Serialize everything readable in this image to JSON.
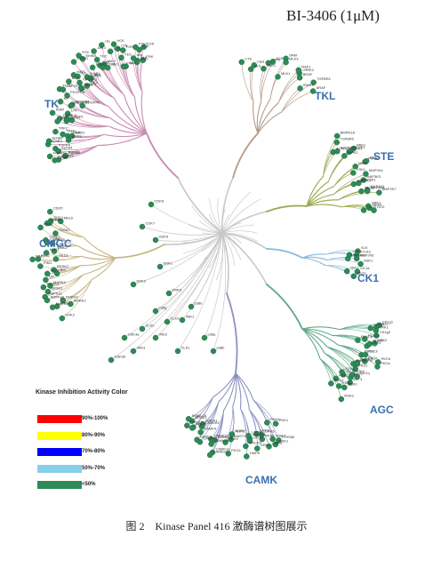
{
  "title": "BI-3406 (1μM)",
  "caption": "图 2　Kinase Panel 416 激酶谱树图展示",
  "families": [
    {
      "key": "tk",
      "label": "TK"
    },
    {
      "key": "tkl",
      "label": "TKL"
    },
    {
      "key": "ste",
      "label": "STE"
    },
    {
      "key": "ck1",
      "label": "CK1"
    },
    {
      "key": "agc",
      "label": "AGC"
    },
    {
      "key": "camk",
      "label": "CAMK"
    },
    {
      "key": "cmgc",
      "label": "CMGC"
    }
  ],
  "legend": {
    "title": "Kinase Inhibition Activity Color",
    "items": [
      {
        "label": "90%-100%",
        "color": "#ff0000"
      },
      {
        "label": "80%-90%",
        "color": "#ffff00"
      },
      {
        "label": "70%-80%",
        "color": "#0000ff"
      },
      {
        "label": "50%-70%",
        "color": "#87ceeb"
      },
      {
        "label": "<50%",
        "color": "#2e8b57"
      }
    ]
  },
  "colors": {
    "tk": "#c98bb0",
    "tkl": "#b89a8a",
    "ste": "#9aa84e",
    "ck1": "#8ab8d8",
    "agc": "#5faa8a",
    "camk": "#8a90c0",
    "cmgc": "#c8b483",
    "other": "#c8c8c8",
    "node": "#2e8b57"
  },
  "kinase_labels": [
    "FGFR3",
    "FGFR1",
    "FGFR2",
    "FGFR4",
    "EphA2",
    "EphA3",
    "EphA4",
    "EphB3",
    "EphB4",
    "TRKA",
    "TRKB",
    "TRKC",
    "MUSK",
    "DDR1",
    "DDR2",
    "INSR",
    "IGF1R",
    "ALK",
    "LTK",
    "ROS",
    "RET",
    "KIT",
    "FLT3",
    "CSF1R",
    "PDGFRa",
    "PDGFRb",
    "VEGFR1",
    "VEGFR2",
    "VEGFR3",
    "TIE2",
    "MET",
    "RON",
    "AXL",
    "MER",
    "TYRO3",
    "EGFR",
    "ErbB2",
    "ErbB4",
    "SYK",
    "ZAP70",
    "BTK",
    "BMX",
    "ITK",
    "TEC",
    "TXK",
    "JAK1",
    "JAK2",
    "JAK3",
    "TYK2",
    "SRC",
    "FYN",
    "YES",
    "LCK",
    "LYN",
    "HCK",
    "FGR",
    "BLK",
    "FRK",
    "ABL",
    "ARG",
    "FAK",
    "PYK2",
    "CSK",
    "CTK",
    "FES",
    "FER",
    "ACK",
    "TNK1",
    "PTK6",
    "SRM",
    "MLK3",
    "MLK1",
    "LRRK2",
    "RAF1",
    "BRAF",
    "ARAF",
    "IRAK4",
    "TGFBR1",
    "TGFBR2",
    "ACVR1",
    "ACVR2A",
    "BMPR1A",
    "RIPK2",
    "LIMK1",
    "TESK1",
    "PAK1",
    "PAK4",
    "MST1",
    "MST2",
    "YSK1",
    "MAP3K1",
    "MAP3K3",
    "MAP2K1",
    "MAP2K4",
    "MAP2K7",
    "MAP4K2",
    "MAP4K4",
    "TAO1",
    "TAO3",
    "NEK2",
    "HPK1",
    "GCK",
    "SLK",
    "LOK",
    "STLK3",
    "MAP2K3",
    "MAP2K6",
    "ASK1",
    "TAK1",
    "CK1a",
    "CK1d",
    "CK1e",
    "CK1g1",
    "CK1g2",
    "CK1g3",
    "VRK1",
    "VRK2",
    "TTBK1",
    "TTBK2",
    "PKACa",
    "PKACb",
    "PKCa",
    "PKCb",
    "PKCd",
    "PKCe",
    "PKCh",
    "PKCi",
    "PKCq",
    "PKCz",
    "ROCK1",
    "ROCK2",
    "AKT1",
    "AKT2",
    "AKT3",
    "SGK1",
    "SGK2",
    "SGK3",
    "RSK1",
    "RSK2",
    "RSK3",
    "RSK4",
    "MSK1",
    "MSK2",
    "P70S6K",
    "PDK1",
    "PKN1",
    "PKN2",
    "GRK2",
    "GRK3",
    "GRK5",
    "GRK6",
    "MRCKa",
    "MRCKb",
    "DMPK",
    "LATS1",
    "LATS2",
    "NDR1",
    "NDR2",
    "MAST1",
    "PRKX",
    "PKG1",
    "CAMK1a",
    "CAMK1d",
    "CAMK2a",
    "CAMK2b",
    "CAMK2d",
    "CAMK4",
    "CAMKK1",
    "CAMKK2",
    "DAPK1",
    "DAPK2",
    "DRAK1",
    "MLCK",
    "SMMLCK",
    "TTN",
    "PHKG1",
    "PHKG2",
    "CHK1",
    "CHK2",
    "MARK1",
    "MARK2",
    "MARK3",
    "MARK4",
    "AMPKa1",
    "AMPKa2",
    "BRSK1",
    "BRSK2",
    "NUAK1",
    "QIK",
    "SIK",
    "PIM1",
    "PIM2",
    "PIM3",
    "MNK1",
    "MNK2",
    "PKD1",
    "PKD2",
    "PKD3",
    "TSSK1",
    "TSSK2",
    "CASK",
    "MELK",
    "CDK1",
    "CDK2",
    "CDK4",
    "CDK5",
    "CDK6",
    "CDK7",
    "CDK9",
    "ERK1",
    "ERK2",
    "ERK5",
    "JNK1",
    "JNK2",
    "JNK3",
    "p38a",
    "p38b",
    "p38g",
    "p38d",
    "GSK3a",
    "GSK3b",
    "CLK1",
    "CLK2",
    "CLK3",
    "CLK4",
    "DYRK1A",
    "DYRK1B",
    "DYRK2",
    "HIPK1",
    "HIPK2",
    "HIPK3",
    "SRPK1",
    "SRPK2",
    "CK2a1",
    "CK2a2",
    "PCTAIRE1",
    "CDKL1",
    "MOK",
    "ICK",
    "AurA",
    "AurB",
    "AurC",
    "PLK1",
    "PLK2",
    "PLK3",
    "PLK4",
    "WEE1",
    "MYT1",
    "BUB1",
    "TTK",
    "IKKa",
    "IKKb",
    "TBK1",
    "IKKe",
    "ULK1",
    "ULK2",
    "ULK3",
    "CDC7",
    "HASPIN",
    "NEK1",
    "NEK6",
    "NEK7",
    "NEK9",
    "PEK",
    "GCN2",
    "PKR",
    "IRE1",
    "Wnk1",
    "Wnk2",
    "RIOK1",
    "RIOK2",
    "MOS",
    "BIKE",
    "AAK1",
    "GAK",
    "HRI",
    "PINK1",
    "MPSK1",
    "SgK071"
  ]
}
